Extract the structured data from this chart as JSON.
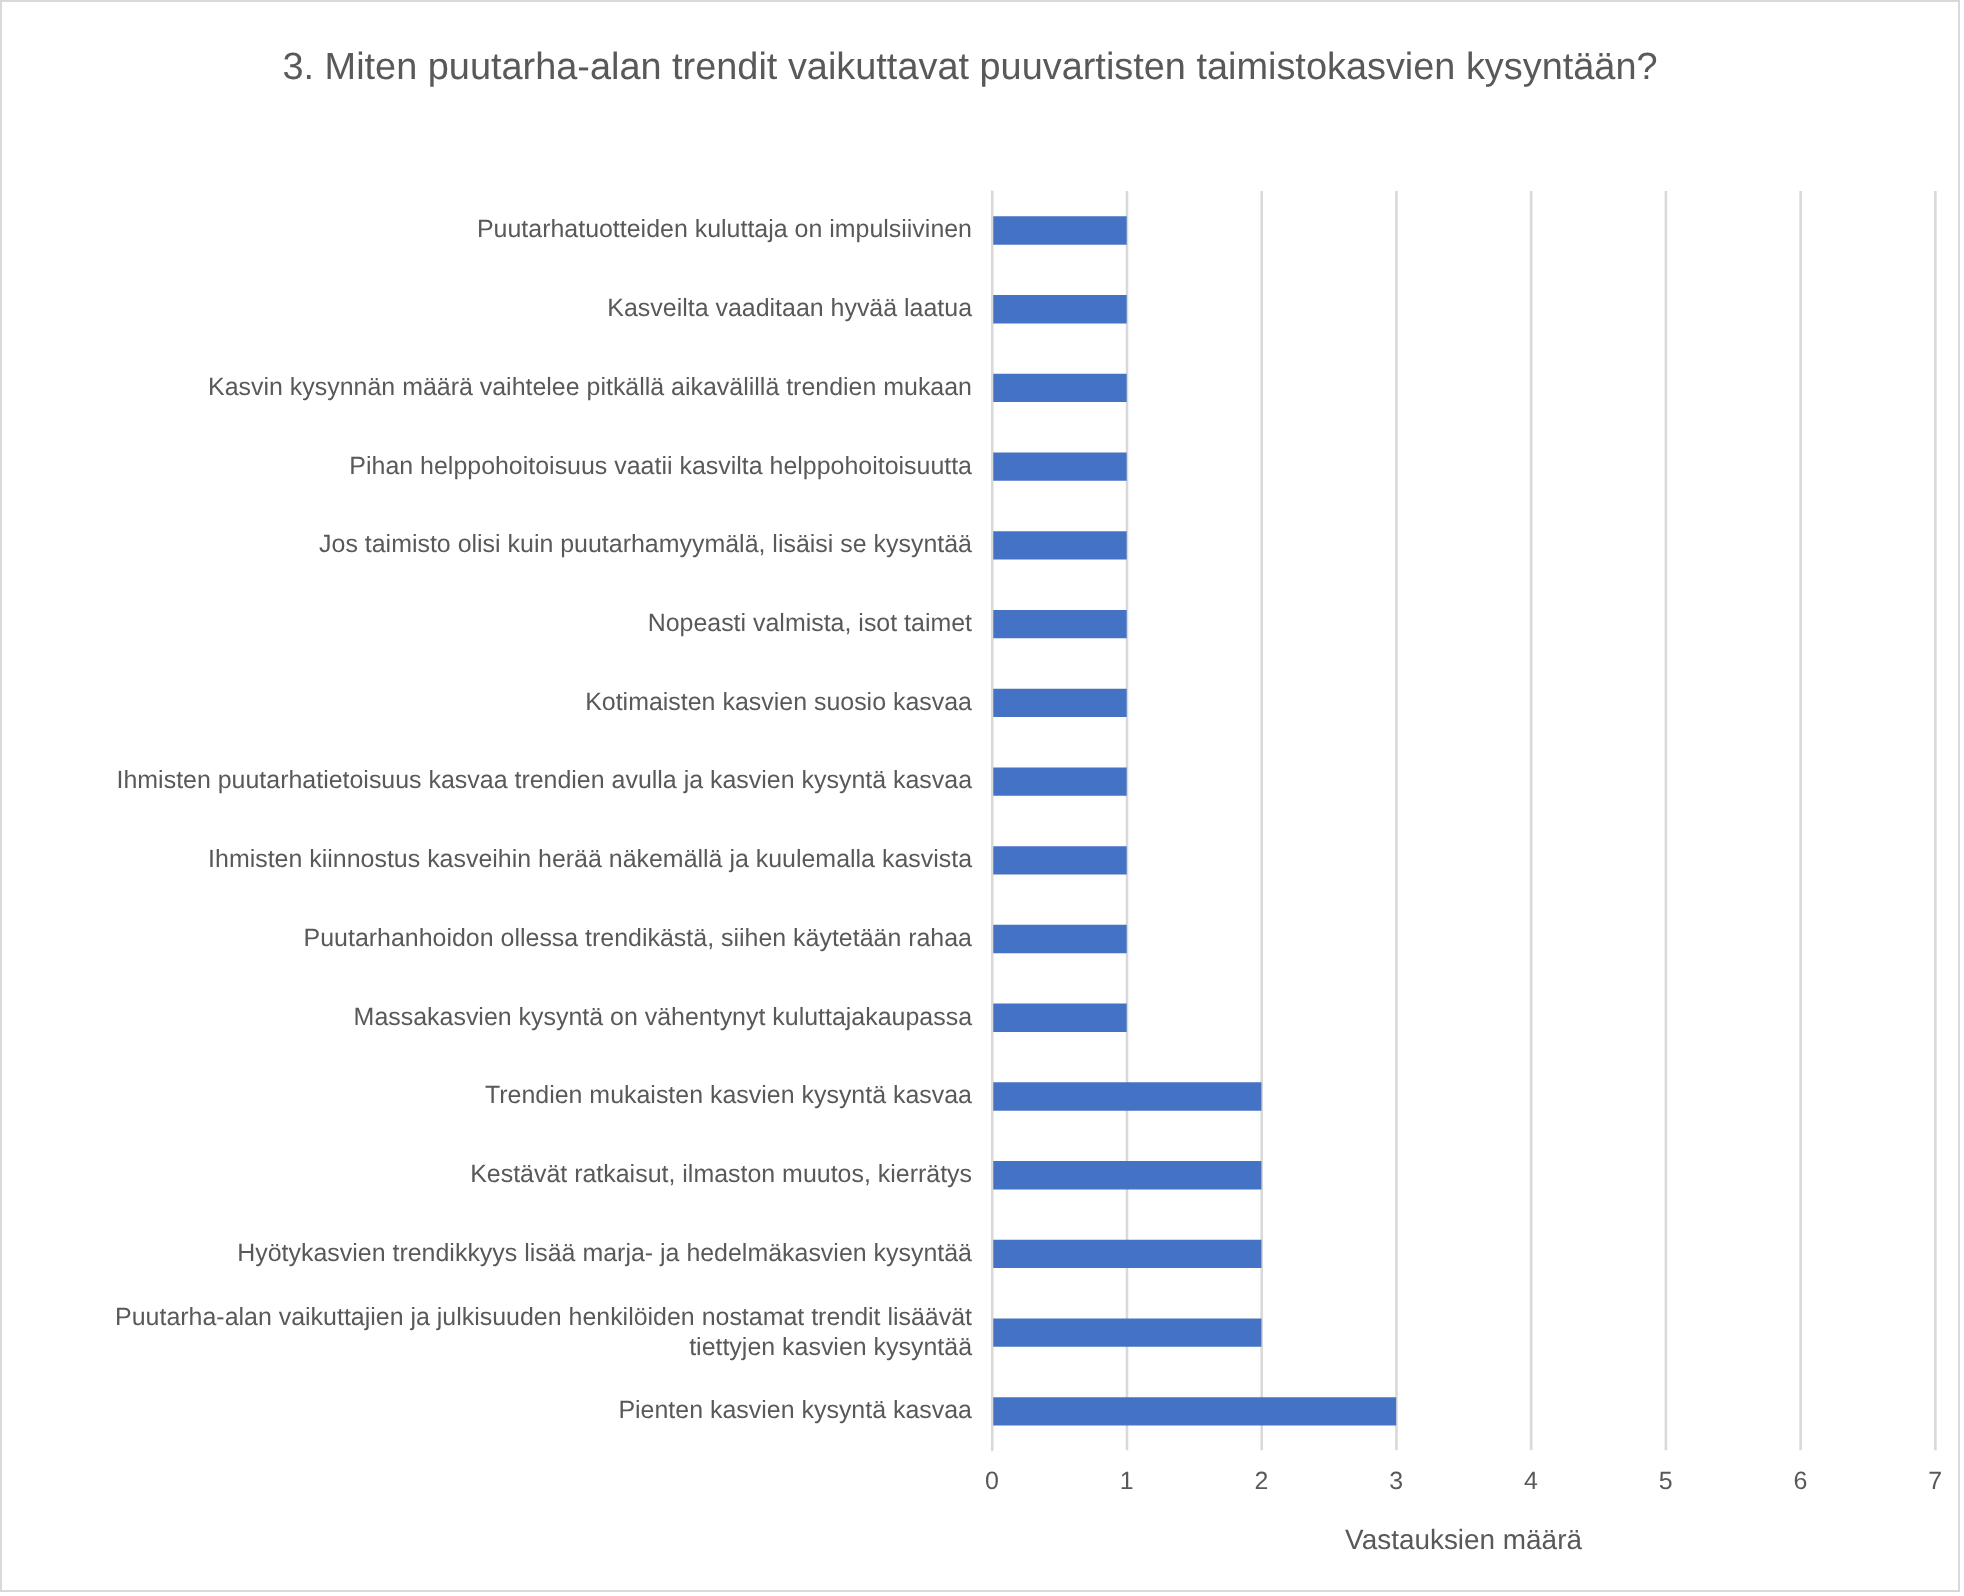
{
  "chart_data": {
    "type": "bar",
    "orientation": "horizontal",
    "title": "3. Miten puutarha-alan trendit vaikuttavat puuvartisten taimistokasvien kysyntään?",
    "xlabel": "Vastauksien määrä",
    "categories": [
      "Puutarhatuotteiden kuluttaja on impulsiivinen",
      "Kasveilta vaaditaan hyvää laatua",
      "Kasvin kysynnän määrä vaihtelee pitkällä aikavälillä trendien mukaan",
      "Pihan helppohoitoisuus vaatii kasvilta helppohoitoisuutta",
      "Jos taimisto olisi kuin puutarhamyymälä, lisäisi se kysyntää",
      "Nopeasti valmista, isot taimet",
      "Kotimaisten kasvien suosio kasvaa",
      "Ihmisten puutarhatietoisuus kasvaa trendien avulla ja kasvien kysyntä kasvaa",
      "Ihmisten kiinnostus kasveihin herää näkemällä ja kuulemalla kasvista",
      "Puutarhanhoidon ollessa trendikästä, siihen käytetään rahaa",
      "Massakasvien kysyntä on vähentynyt kuluttajakaupassa",
      "Trendien mukaisten kasvien kysyntä kasvaa",
      "Kestävät ratkaisut, ilmaston muutos, kierrätys",
      "Hyötykasvien trendikkyys lisää marja- ja hedelmäkasvien kysyntää",
      "Puutarha-alan vaikuttajien ja julkisuuden henkilöiden nostamat trendit lisäävät tiettyjen kasvien kysyntää",
      "Pienten kasvien kysyntä kasvaa"
    ],
    "values": [
      1,
      1,
      1,
      1,
      1,
      1,
      1,
      1,
      1,
      1,
      1,
      2,
      2,
      2,
      2,
      3
    ],
    "color": "#4472c4",
    "xlim": [
      0,
      7
    ],
    "xticks": [
      0,
      1,
      2,
      3,
      4,
      5,
      6,
      7
    ],
    "grid": "x"
  }
}
